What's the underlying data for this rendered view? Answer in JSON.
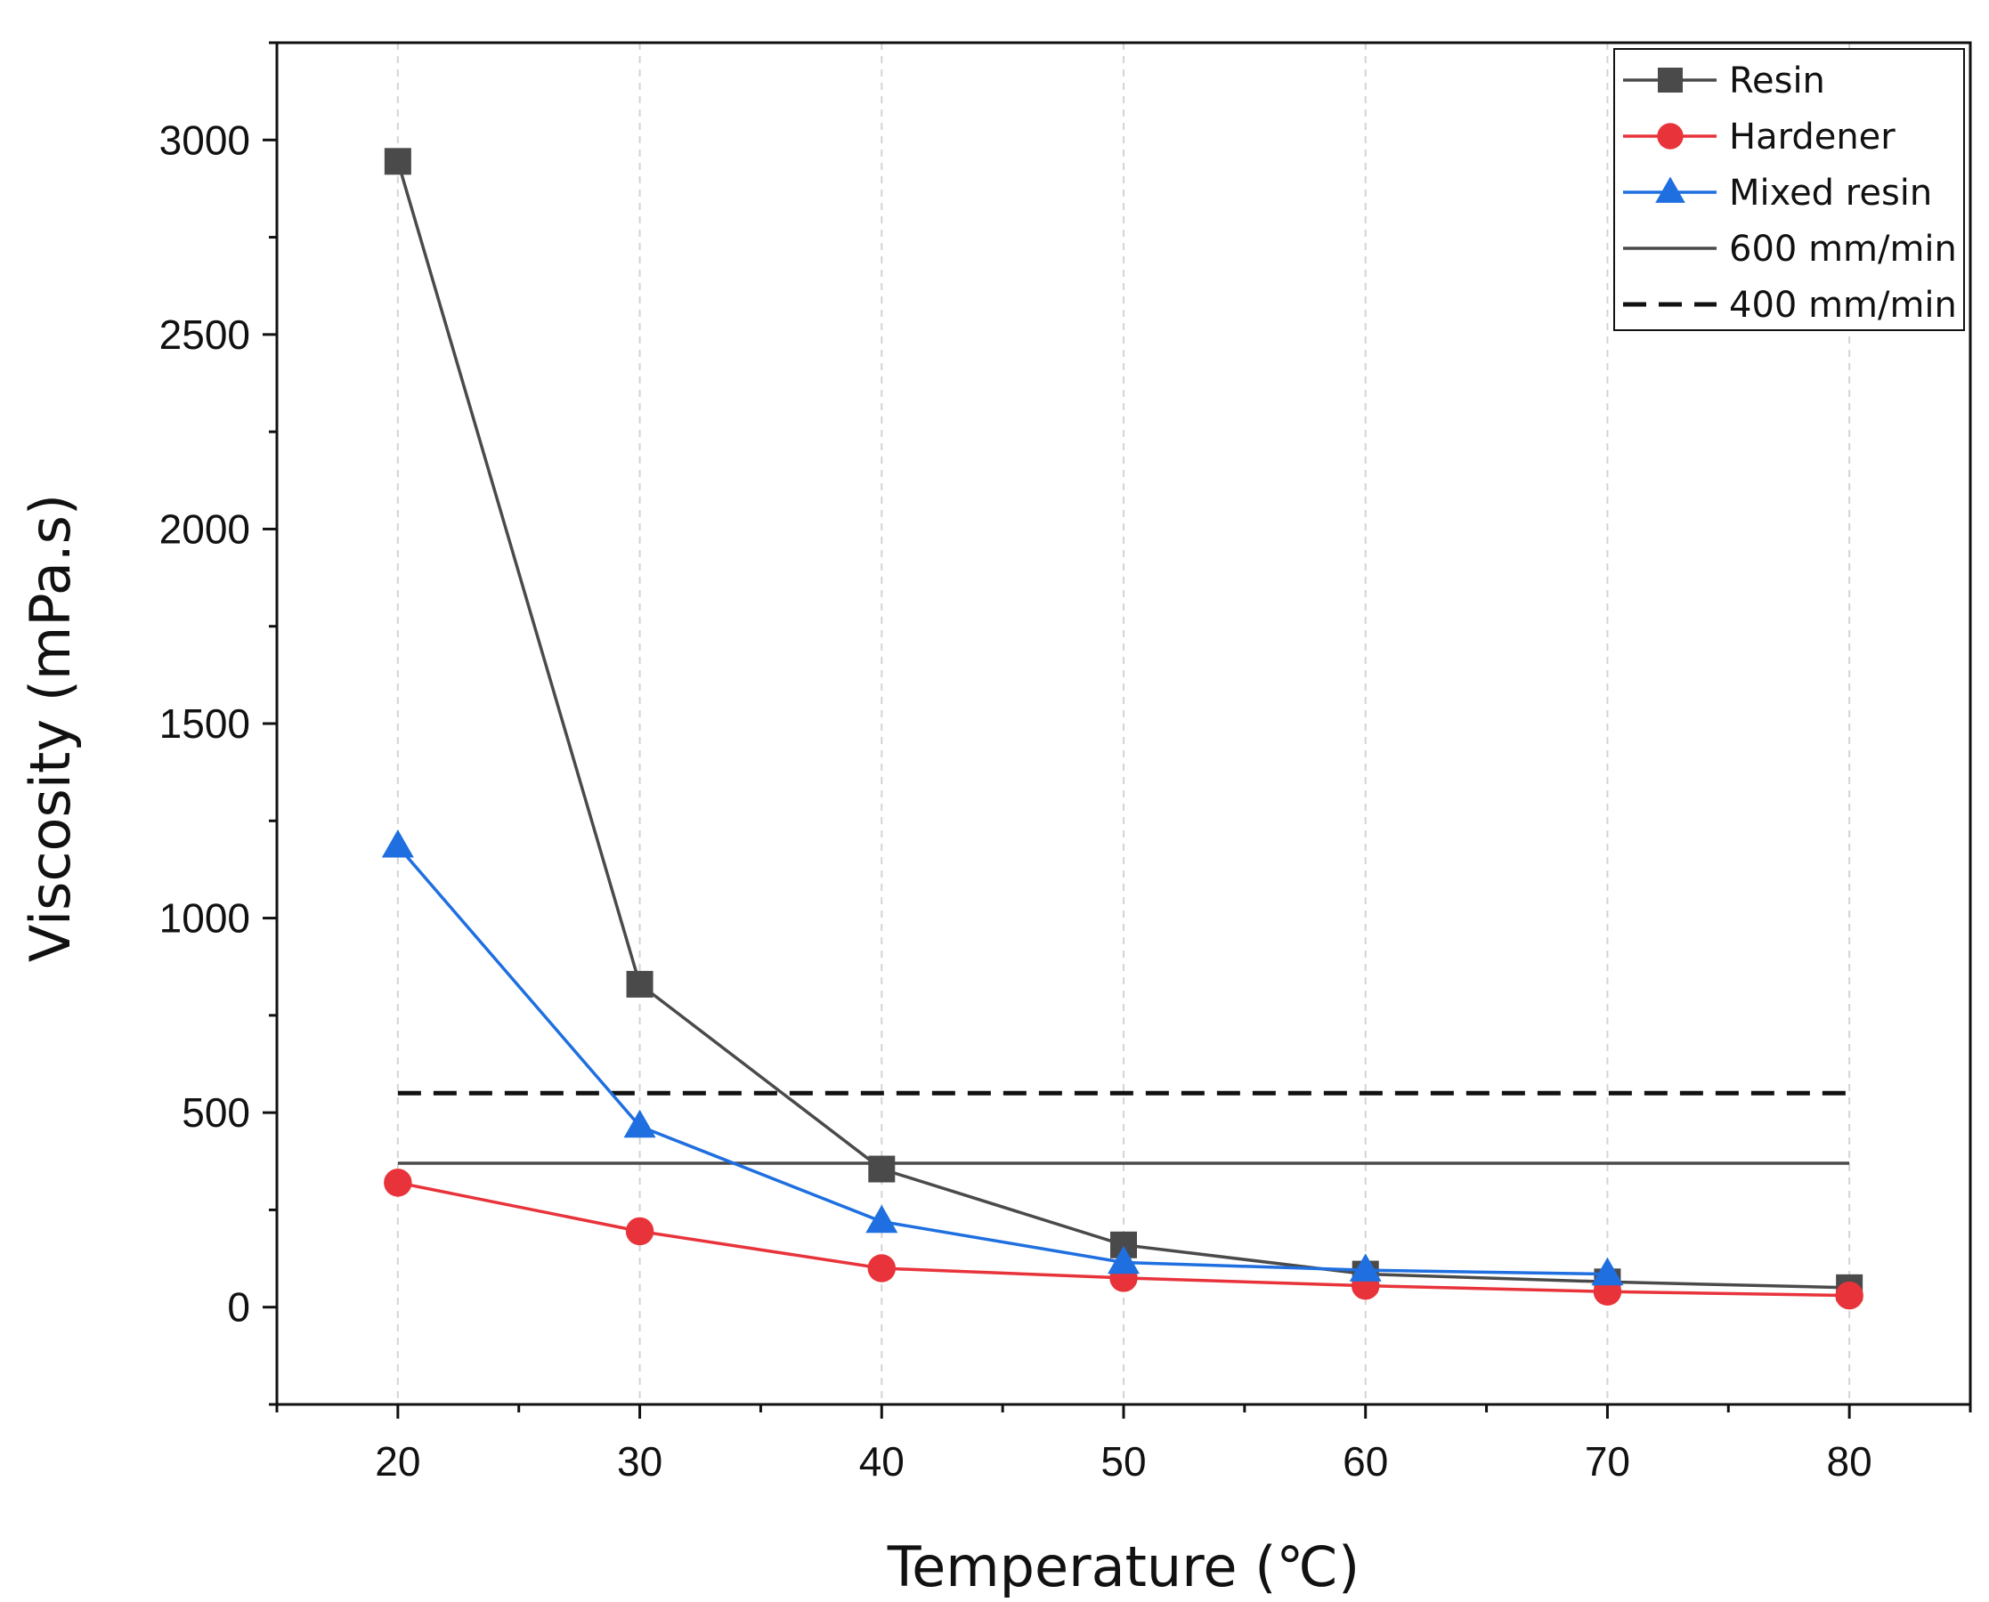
{
  "chart_data": {
    "type": "line",
    "title": "",
    "xlabel": "Temperature (℃)",
    "ylabel": "Viscosity (mPa.s)",
    "xlim": [
      15,
      85
    ],
    "ylim": [
      -250,
      3250
    ],
    "x_ticks": [
      20,
      30,
      40,
      50,
      60,
      70,
      80
    ],
    "y_ticks": [
      0,
      500,
      1000,
      1500,
      2000,
      2500,
      3000
    ],
    "grid": "vertical dashed",
    "legend_position": "top-right",
    "series": [
      {
        "name": "Resin",
        "color": "#4a4a4a",
        "marker": "square",
        "x": [
          20,
          30,
          40,
          50,
          60,
          70,
          80
        ],
        "values": [
          2945,
          830,
          355,
          160,
          85,
          65,
          50
        ]
      },
      {
        "name": "Hardener",
        "color": "#e8333a",
        "marker": "circle",
        "x": [
          20,
          30,
          40,
          50,
          60,
          70,
          80
        ],
        "values": [
          320,
          195,
          100,
          75,
          55,
          40,
          30
        ]
      },
      {
        "name": "Mixed resin",
        "color": "#1f6fe0",
        "marker": "triangle",
        "x": [
          20,
          30,
          40,
          50,
          60,
          70
        ],
        "values": [
          1185,
          465,
          220,
          115,
          95,
          85
        ]
      }
    ],
    "reference_lines": [
      {
        "name": "600 mm/min",
        "value": 370,
        "x_range": [
          20,
          80
        ],
        "style": "solid",
        "color": "#4a4a4a"
      },
      {
        "name": "400 mm/min",
        "value": 550,
        "x_range": [
          20,
          80
        ],
        "style": "dashed",
        "color": "#111111"
      }
    ]
  }
}
